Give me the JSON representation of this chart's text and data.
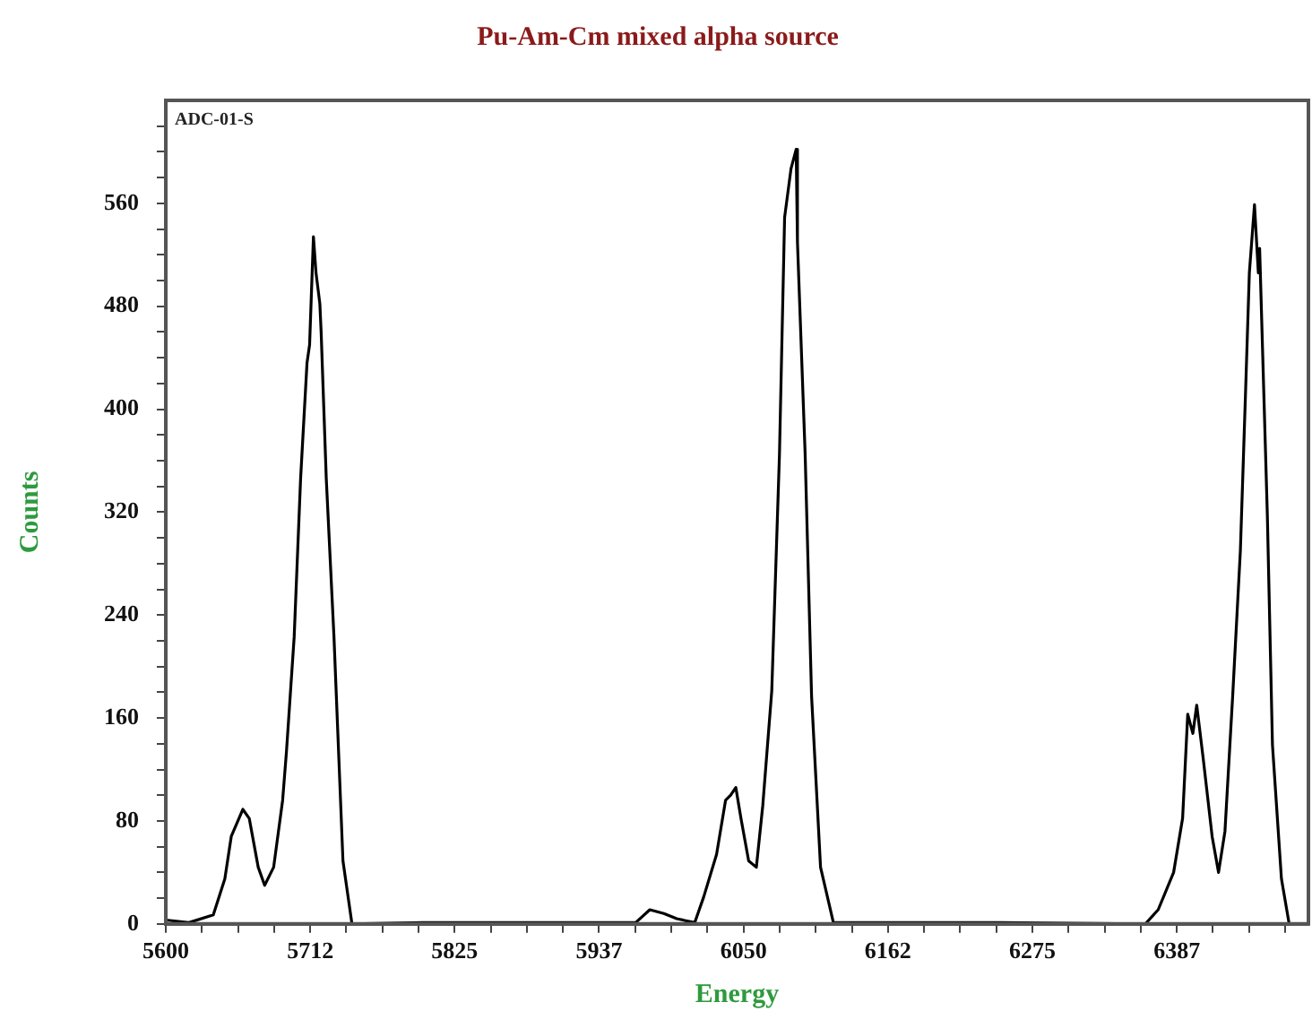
{
  "chart_data": {
    "type": "line",
    "title": "Pu-Am-Cm mixed alpha source",
    "xlabel": "Energy",
    "ylabel": "Counts",
    "annotations": [
      "ADC-01-S"
    ],
    "marker": "none",
    "line_style": "solid",
    "grid": false,
    "legend": false,
    "xlim": [
      5600,
      6490
    ],
    "ylim": [
      0,
      640
    ],
    "xticks": [
      5600,
      {
        "value": 5628.125,
        "label": null
      },
      {
        "value": 5656.25,
        "label": null
      },
      {
        "value": 5684.375,
        "label": null
      },
      {
        "value": 5712.5,
        "label": "5712"
      },
      {
        "value": 5740.625,
        "label": null
      },
      {
        "value": 5768.75,
        "label": null
      },
      {
        "value": 5796.875,
        "label": null
      },
      5825,
      {
        "value": 5853.125,
        "label": null
      },
      {
        "value": 5881.25,
        "label": null
      },
      {
        "value": 5909.375,
        "label": null
      },
      {
        "value": 5937.5,
        "label": "5937"
      },
      {
        "value": 5965.625,
        "label": null
      },
      {
        "value": 5993.75,
        "label": null
      },
      {
        "value": 6021.875,
        "label": null
      },
      6050,
      {
        "value": 6078.125,
        "label": null
      },
      {
        "value": 6106.25,
        "label": null
      },
      {
        "value": 6134.375,
        "label": null
      },
      {
        "value": 6162.5,
        "label": "6162"
      },
      {
        "value": 6190.625,
        "label": null
      },
      {
        "value": 6218.75,
        "label": null
      },
      {
        "value": 6246.875,
        "label": null
      },
      6275,
      {
        "value": 6303.125,
        "label": null
      },
      {
        "value": 6331.25,
        "label": null
      },
      {
        "value": 6359.375,
        "label": null
      },
      {
        "value": 6387.5,
        "label": "6387"
      },
      {
        "value": 6415.625,
        "label": null
      },
      {
        "value": 6443.75,
        "label": null
      },
      {
        "value": 6471.875,
        "label": null
      }
    ],
    "yticks": [
      0,
      {
        "value": 20,
        "label": null
      },
      {
        "value": 40,
        "label": null
      },
      {
        "value": 60,
        "label": null
      },
      80,
      {
        "value": 100,
        "label": null
      },
      {
        "value": 120,
        "label": null
      },
      {
        "value": 140,
        "label": null
      },
      160,
      {
        "value": 180,
        "label": null
      },
      {
        "value": 200,
        "label": null
      },
      {
        "value": 220,
        "label": null
      },
      240,
      {
        "value": 260,
        "label": null
      },
      {
        "value": 280,
        "label": null
      },
      {
        "value": 300,
        "label": null
      },
      320,
      {
        "value": 340,
        "label": null
      },
      {
        "value": 360,
        "label": null
      },
      {
        "value": 380,
        "label": null
      },
      400,
      {
        "value": 420,
        "label": null
      },
      {
        "value": 440,
        "label": null
      },
      {
        "value": 460,
        "label": null
      },
      480,
      {
        "value": 500,
        "label": null
      },
      {
        "value": 520,
        "label": null
      },
      {
        "value": 540,
        "label": null
      },
      560,
      {
        "value": 580,
        "label": null
      },
      {
        "value": 600,
        "label": null
      },
      {
        "value": 620,
        "label": null
      }
    ],
    "series": [
      {
        "color": "#000000",
        "x": [
          5600,
          5618,
          5637,
          5646,
          5651,
          5660,
          5665,
          5672,
          5677,
          5684,
          5691,
          5694,
          5700,
          5705,
          5710,
          5712,
          5715,
          5717,
          5720,
          5721,
          5725,
          5731,
          5738,
          5745,
          5800,
          5900,
          5966,
          5977,
          5988,
          5998,
          6012,
          6019,
          6029,
          6036,
          6040,
          6044,
          6048,
          6054,
          6060,
          6065,
          6072,
          6078,
          6082,
          6087,
          6091,
          6092,
          6098,
          6103,
          6110,
          6120,
          6167,
          6250,
          6363,
          6373,
          6385,
          6392,
          6396,
          6400,
          6403,
          6408,
          6415,
          6420,
          6425,
          6431,
          6437,
          6441,
          6444,
          6448,
          6451,
          6452,
          6458,
          6462,
          6469,
          6475,
          6490
        ],
        "values": [
          3,
          1,
          7,
          35,
          68,
          89,
          82,
          44,
          30,
          44,
          96,
          134,
          223,
          346,
          436,
          450,
          534,
          506,
          482,
          460,
          346,
          223,
          49,
          0,
          1,
          1,
          1,
          11,
          8,
          4,
          1,
          21,
          54,
          96,
          100,
          106,
          82,
          49,
          44,
          92,
          181,
          365,
          549,
          587,
          602,
          530,
          365,
          177,
          44,
          1,
          1,
          1,
          0,
          11,
          40,
          82,
          163,
          148,
          170,
          129,
          68,
          40,
          72,
          177,
          290,
          412,
          506,
          559,
          506,
          525,
          318,
          139,
          35,
          0,
          0
        ]
      }
    ]
  }
}
